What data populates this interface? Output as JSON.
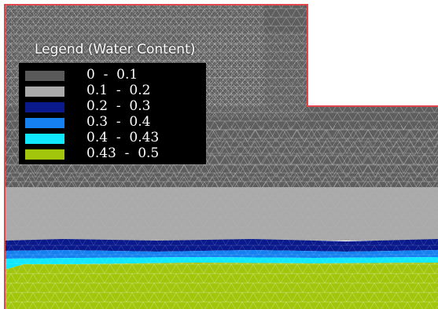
{
  "legend": {
    "title": "Legend (Water Content)",
    "items": [
      {
        "label": "0  -  0.1",
        "color": "#5a5a5a"
      },
      {
        "label": "0.1  -  0.2",
        "color": "#aaaaaa"
      },
      {
        "label": "0.2  -  0.3",
        "color": "#0a1a8c"
      },
      {
        "label": "0.3  -  0.4",
        "color": "#1580f0"
      },
      {
        "label": "0.4  -  0.43",
        "color": "#10e8ff"
      },
      {
        "label": "0.43  -  0.5",
        "color": "#a2c60c"
      }
    ]
  },
  "colors": {
    "mesh_dark": "#5e5e5e",
    "mesh_light": "#aaaaaa",
    "boundary": "#e0474c",
    "mesh_line": "#c9c9c9",
    "blue_dark": "#0a1a8c",
    "blue_mid": "#1580f0",
    "cyan": "#10e8ff",
    "green": "#a2c60c"
  }
}
